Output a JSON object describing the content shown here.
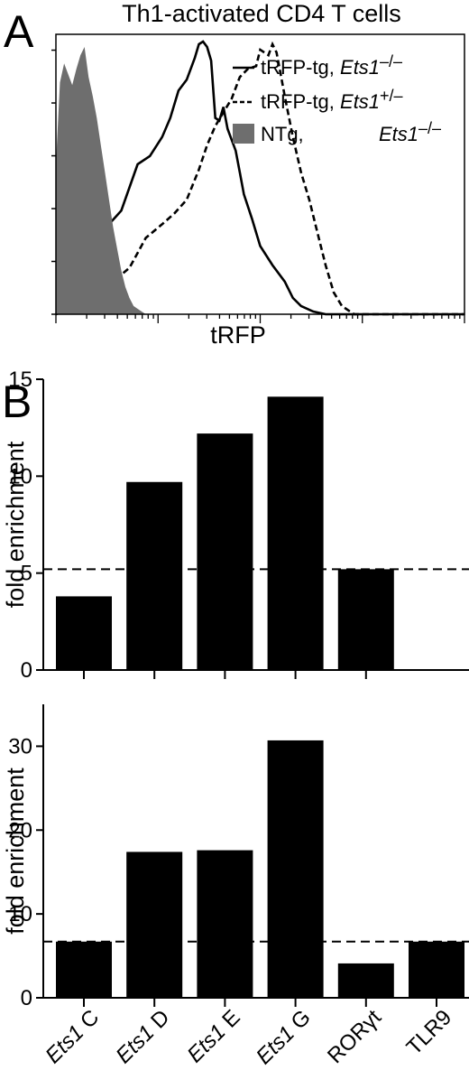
{
  "chart_data": [
    {
      "panel": "A",
      "type": "area",
      "title": "Th1-activated CD4 T cells",
      "xlabel": "tRFP",
      "ylabel": "",
      "x_scale": "log",
      "legend_position": "top-right",
      "legend": [
        {
          "style": "solid-line",
          "label": "tRFP-tg, ",
          "genotype": "Ets1",
          "superscript": "–/–"
        },
        {
          "style": "dashed-line",
          "label": "tRFP-tg, ",
          "genotype": "Ets1",
          "superscript": "+/–"
        },
        {
          "style": "gray-fill",
          "label": "NTg, ",
          "genotype": "Ets1",
          "superscript": "–/–"
        }
      ],
      "series": [
        {
          "name": "tRFP-tg, Ets1–/–",
          "style": "solid",
          "x": [
            0.0,
            0.04,
            0.07,
            0.1,
            0.13,
            0.16,
            0.2,
            0.23,
            0.26,
            0.28,
            0.3,
            0.32,
            0.34,
            0.35,
            0.36,
            0.37,
            0.38,
            0.39,
            0.4,
            0.41,
            0.42,
            0.44,
            0.45,
            0.46,
            0.48,
            0.5,
            0.53,
            0.56,
            0.58,
            0.6,
            0.63,
            0.66,
            0.72,
            0.8,
            1.0
          ],
          "y": [
            0.0,
            0.05,
            0.12,
            0.28,
            0.33,
            0.38,
            0.55,
            0.58,
            0.65,
            0.72,
            0.82,
            0.86,
            0.94,
            0.99,
            1.0,
            0.98,
            0.93,
            0.72,
            0.71,
            0.76,
            0.68,
            0.6,
            0.52,
            0.44,
            0.35,
            0.25,
            0.18,
            0.12,
            0.06,
            0.03,
            0.01,
            0.0,
            0.0,
            0.0,
            0.0
          ]
        },
        {
          "name": "tRFP-tg, Ets1+/–",
          "style": "dashed",
          "x": [
            0.0,
            0.05,
            0.1,
            0.14,
            0.18,
            0.22,
            0.26,
            0.29,
            0.32,
            0.35,
            0.37,
            0.39,
            0.41,
            0.43,
            0.45,
            0.47,
            0.49,
            0.5,
            0.52,
            0.53,
            0.54,
            0.55,
            0.56,
            0.58,
            0.6,
            0.62,
            0.64,
            0.66,
            0.68,
            0.7,
            0.73,
            0.78,
            1.0
          ],
          "y": [
            0.0,
            0.03,
            0.08,
            0.12,
            0.17,
            0.28,
            0.33,
            0.37,
            0.42,
            0.53,
            0.62,
            0.69,
            0.74,
            0.79,
            0.87,
            0.9,
            0.91,
            0.97,
            0.95,
            0.99,
            0.96,
            0.88,
            0.8,
            0.65,
            0.52,
            0.42,
            0.3,
            0.18,
            0.08,
            0.03,
            0.0,
            0.0,
            0.0
          ]
        },
        {
          "name": "NTg, Ets1–/–",
          "style": "gray-fill",
          "x": [
            0.0,
            0.01,
            0.02,
            0.03,
            0.04,
            0.05,
            0.06,
            0.07,
            0.08,
            0.09,
            0.1,
            0.11,
            0.12,
            0.13,
            0.14,
            0.15,
            0.16,
            0.17,
            0.18,
            0.19,
            0.2,
            0.21,
            0.22,
            0.23
          ],
          "y": [
            0.55,
            0.85,
            0.92,
            0.88,
            0.84,
            0.9,
            0.95,
            0.98,
            0.87,
            0.8,
            0.72,
            0.62,
            0.52,
            0.42,
            0.32,
            0.24,
            0.16,
            0.1,
            0.06,
            0.03,
            0.02,
            0.01,
            0.0,
            0.0
          ]
        }
      ]
    },
    {
      "panel": "B",
      "type": "bar",
      "xlabel": "",
      "ylabel": "fold enrichment",
      "ylim": [
        0,
        15
      ],
      "yticks": [
        "0",
        "5",
        "10",
        "15"
      ],
      "categories": [
        "Ets1 C",
        "Ets1 D",
        "Ets1 E",
        "Ets1 G",
        "RORγt"
      ],
      "values": [
        3.8,
        9.7,
        12.2,
        14.1,
        5.2
      ],
      "threshold": 5.2
    },
    {
      "panel": "B",
      "type": "bar",
      "xlabel": "",
      "ylabel": "fold enrichment",
      "ylim": [
        0,
        35
      ],
      "yticks": [
        "0",
        "10",
        "20",
        "30"
      ],
      "categories": [
        "Ets1 C",
        "Ets1 D",
        "Ets1 E",
        "Ets1 G",
        "RORγt",
        "TLR9"
      ],
      "values": [
        6.7,
        17.4,
        17.6,
        30.7,
        4.1,
        6.7
      ],
      "threshold": 6.7
    }
  ],
  "labels": {
    "panel_a": "A",
    "panel_b": "B",
    "category_gene": [
      "Ets1",
      "Ets1",
      "Ets1",
      "Ets1",
      "",
      ""
    ],
    "category_suffix": [
      " C",
      " D",
      " E",
      " G",
      "RORγt",
      "TLR9"
    ]
  }
}
